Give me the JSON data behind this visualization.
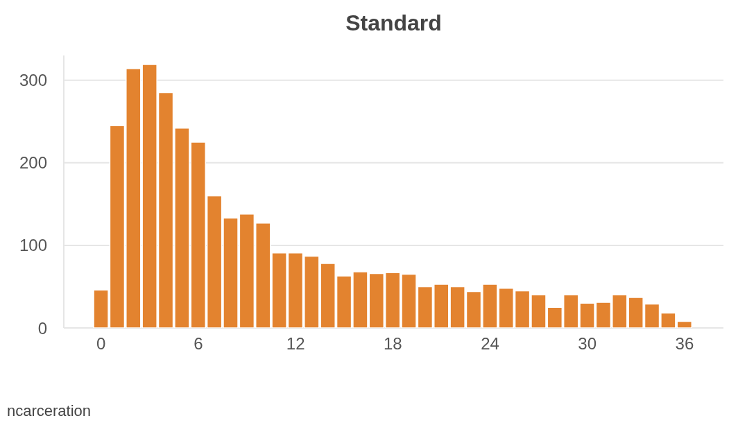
{
  "chart_data": {
    "type": "histogram",
    "title": "Standard",
    "xlabel": "ncarceration",
    "bins": [
      -0.5,
      0.5,
      1.5,
      2.5,
      3.5,
      4.5,
      5.5,
      6.5,
      7.5,
      8.5,
      9.5,
      10.5,
      11.5,
      12.5,
      13.5,
      14.5,
      15.5,
      16.5,
      17.5,
      18.5,
      19.5,
      20.5,
      21.5,
      22.5,
      23.5,
      24.5,
      25.5,
      26.5,
      27.5,
      28.5,
      29.5,
      30.5,
      31.5,
      32.5,
      33.5,
      34.5,
      35.5,
      36.5
    ],
    "values": [
      46,
      245,
      314,
      319,
      285,
      242,
      225,
      160,
      133,
      138,
      127,
      91,
      91,
      87,
      78,
      63,
      68,
      66,
      67,
      65,
      50,
      53,
      50,
      44,
      53,
      48,
      45,
      40,
      25,
      40,
      30,
      31,
      40,
      37,
      29,
      18,
      8
    ],
    "color": "#e3832f",
    "xlim": [
      -2.3,
      38.4
    ],
    "xticks": [
      0,
      6,
      12,
      18,
      24,
      30,
      36
    ],
    "ylim": [
      0,
      330
    ],
    "yticks": [
      0,
      100,
      200,
      300
    ],
    "grid": "y"
  }
}
